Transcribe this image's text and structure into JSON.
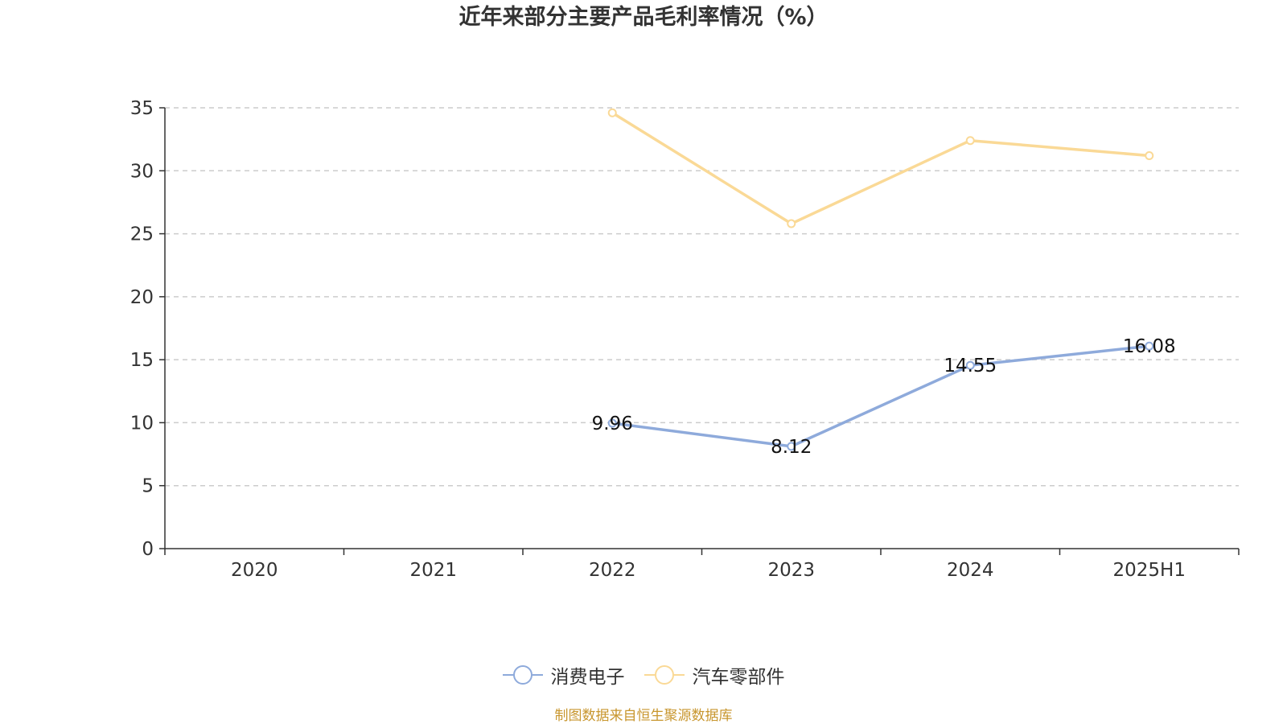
{
  "chart_data": {
    "type": "line",
    "title": "近年来部分主要产品毛利率情况（%）",
    "categories": [
      "2020",
      "2021",
      "2022",
      "2023",
      "2024",
      "2025H1"
    ],
    "ylim": [
      0,
      35
    ],
    "yticks": [
      "0",
      "5",
      "10",
      "15",
      "20",
      "25",
      "30",
      "35"
    ],
    "grid": true,
    "legend_position": "bottom",
    "series": [
      {
        "name": "消费电子",
        "color": "#8eaadb",
        "values": [
          null,
          null,
          9.96,
          8.12,
          14.55,
          16.08
        ],
        "labels": [
          "",
          "",
          "9.96",
          "8.12",
          "14.55",
          "16.08"
        ]
      },
      {
        "name": "汽车零部件",
        "color": "#fad996",
        "values": [
          null,
          null,
          34.6,
          25.8,
          32.4,
          31.2
        ],
        "labels": [
          "",
          "",
          "",
          "",
          "",
          ""
        ]
      }
    ]
  },
  "source": "制图数据来自恒生聚源数据库"
}
